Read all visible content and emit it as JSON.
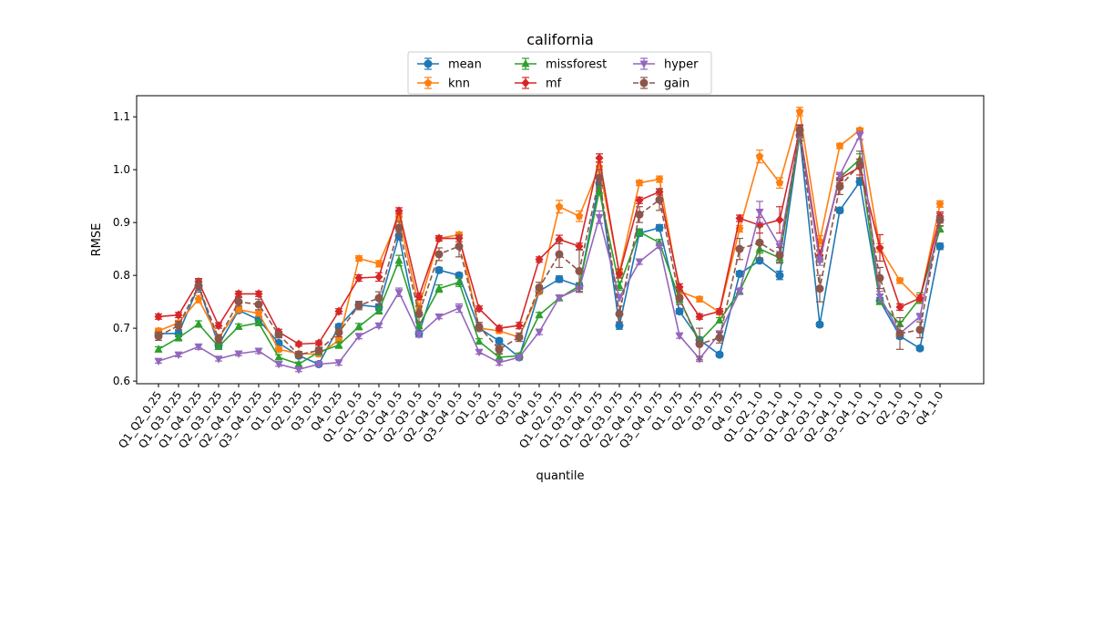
{
  "chart_data": {
    "type": "line",
    "title": "california",
    "xlabel": "quantile",
    "ylabel": "RMSE",
    "ylim": [
      0.595,
      1.14
    ],
    "yticks": [
      0.6,
      0.7,
      0.8,
      0.9,
      1.0,
      1.1
    ],
    "legend_position": "top-center",
    "legend_columns": 3,
    "grid": false,
    "categories": [
      "Q1_Q2_0.25",
      "Q1_Q3_0.25",
      "Q1_Q4_0.25",
      "Q2_Q3_0.25",
      "Q2_Q4_0.25",
      "Q3_Q4_0.25",
      "Q1_0.25",
      "Q2_0.25",
      "Q3_0.25",
      "Q4_0.25",
      "Q1_Q2_0.5",
      "Q1_Q3_0.5",
      "Q1_Q4_0.5",
      "Q2_Q3_0.5",
      "Q2_Q4_0.5",
      "Q3_Q4_0.5",
      "Q1_0.5",
      "Q2_0.5",
      "Q3_0.5",
      "Q4_0.5",
      "Q1_Q2_0.75",
      "Q1_Q3_0.75",
      "Q1_Q4_0.75",
      "Q2_Q3_0.75",
      "Q2_Q4_0.75",
      "Q3_Q4_0.75",
      "Q1_0.75",
      "Q2_0.75",
      "Q3_0.75",
      "Q4_0.75",
      "Q1_Q2_1.0",
      "Q1_Q3_1.0",
      "Q1_Q4_1.0",
      "Q2_Q3_1.0",
      "Q2_Q4_1.0",
      "Q3_Q4_1.0",
      "Q1_1.0",
      "Q2_1.0",
      "Q3_1.0",
      "Q4_1.0"
    ],
    "x_points": 40,
    "tick_label_interval": 1,
    "series": [
      {
        "name": "mean",
        "color": "#1f77b4",
        "marker": "circle",
        "dashed": false,
        "values": [
          0.69,
          0.69,
          0.78,
          0.668,
          0.734,
          0.716,
          0.672,
          0.648,
          0.632,
          0.703,
          0.744,
          0.74,
          0.875,
          0.69,
          0.81,
          0.8,
          0.7,
          0.676,
          0.645,
          0.77,
          0.793,
          0.78,
          0.975,
          0.705,
          0.88,
          0.89,
          0.732,
          0.678,
          0.65,
          0.803,
          0.828,
          0.8,
          1.065,
          0.707,
          0.923,
          0.977,
          0.752,
          0.685,
          0.662,
          0.855
        ],
        "errors": [
          0.005,
          0.006,
          0.008,
          0.005,
          0.005,
          0.006,
          0.004,
          0.004,
          0.003,
          0.005,
          0.006,
          0.006,
          0.008,
          0.005,
          0.005,
          0.005,
          0.005,
          0.005,
          0.004,
          0.005,
          0.006,
          0.006,
          0.01,
          0.007,
          0.006,
          0.006,
          0.005,
          0.005,
          0.004,
          0.005,
          0.005,
          0.008,
          0.01,
          0.004,
          0.005,
          0.006,
          0.006,
          0.005,
          0.004,
          0.006
        ]
      },
      {
        "name": "knn",
        "color": "#ff7f0e",
        "marker": "pentagon",
        "dashed": false,
        "values": [
          0.695,
          0.71,
          0.755,
          0.682,
          0.735,
          0.728,
          0.66,
          0.652,
          0.651,
          0.677,
          0.832,
          0.822,
          0.91,
          0.74,
          0.87,
          0.877,
          0.7,
          0.695,
          0.683,
          0.77,
          0.93,
          0.912,
          1.005,
          0.805,
          0.975,
          0.982,
          0.77,
          0.755,
          0.73,
          0.888,
          1.025,
          0.975,
          1.11,
          0.865,
          1.045,
          1.075,
          0.852,
          0.79,
          0.752,
          0.935
        ],
        "errors": [
          0.005,
          0.005,
          0.007,
          0.005,
          0.005,
          0.005,
          0.004,
          0.004,
          0.004,
          0.005,
          0.005,
          0.006,
          0.008,
          0.006,
          0.005,
          0.005,
          0.005,
          0.004,
          0.004,
          0.005,
          0.012,
          0.01,
          0.01,
          0.008,
          0.005,
          0.006,
          0.006,
          0.005,
          0.004,
          0.006,
          0.012,
          0.01,
          0.008,
          0.01,
          0.005,
          0.004,
          0.008,
          0.005,
          0.005,
          0.006
        ]
      },
      {
        "name": "missforest",
        "color": "#2ca02c",
        "marker": "triangle-up",
        "dashed": false,
        "values": [
          0.66,
          0.682,
          0.708,
          0.665,
          0.703,
          0.71,
          0.645,
          0.632,
          0.655,
          0.668,
          0.703,
          0.733,
          0.828,
          0.705,
          0.775,
          0.787,
          0.675,
          0.645,
          0.648,
          0.725,
          0.757,
          0.78,
          0.96,
          0.78,
          0.882,
          0.862,
          0.755,
          0.675,
          0.715,
          0.77,
          0.85,
          0.833,
          1.065,
          0.835,
          0.985,
          1.02,
          0.75,
          0.708,
          0.757,
          0.888
        ],
        "errors": [
          0.005,
          0.006,
          0.006,
          0.005,
          0.005,
          0.005,
          0.005,
          0.004,
          0.005,
          0.006,
          0.006,
          0.006,
          0.01,
          0.006,
          0.007,
          0.008,
          0.005,
          0.006,
          0.005,
          0.005,
          0.005,
          0.006,
          0.008,
          0.008,
          0.006,
          0.006,
          0.006,
          0.005,
          0.005,
          0.006,
          0.008,
          0.008,
          0.01,
          0.01,
          0.006,
          0.01,
          0.005,
          0.005,
          0.01,
          0.006
        ]
      },
      {
        "name": "mf",
        "color": "#d62728",
        "marker": "diamond",
        "dashed": false,
        "values": [
          0.722,
          0.725,
          0.788,
          0.705,
          0.765,
          0.765,
          0.693,
          0.67,
          0.672,
          0.732,
          0.795,
          0.797,
          0.922,
          0.76,
          0.87,
          0.87,
          0.737,
          0.7,
          0.705,
          0.83,
          0.868,
          0.855,
          1.022,
          0.803,
          0.942,
          0.958,
          0.778,
          0.722,
          0.732,
          0.908,
          0.895,
          0.905,
          1.075,
          0.838,
          0.983,
          1.005,
          0.852,
          0.74,
          0.757,
          0.912
        ],
        "errors": [
          0.005,
          0.005,
          0.006,
          0.005,
          0.005,
          0.005,
          0.005,
          0.004,
          0.004,
          0.005,
          0.006,
          0.008,
          0.006,
          0.006,
          0.005,
          0.006,
          0.005,
          0.005,
          0.006,
          0.005,
          0.008,
          0.006,
          0.008,
          0.008,
          0.006,
          0.006,
          0.006,
          0.005,
          0.005,
          0.006,
          0.015,
          0.025,
          0.008,
          0.01,
          0.008,
          0.015,
          0.025,
          0.006,
          0.006,
          0.008
        ]
      },
      {
        "name": "hyper",
        "color": "#9467bd",
        "marker": "triangle-down",
        "dashed": false,
        "values": [
          0.638,
          0.65,
          0.665,
          0.642,
          0.652,
          0.657,
          0.632,
          0.622,
          0.632,
          0.635,
          0.685,
          0.705,
          0.768,
          0.688,
          0.722,
          0.738,
          0.655,
          0.635,
          0.645,
          0.693,
          0.758,
          0.775,
          0.91,
          0.758,
          0.826,
          0.856,
          0.686,
          0.642,
          0.69,
          0.77,
          0.92,
          0.855,
          1.07,
          0.827,
          0.99,
          1.065,
          0.76,
          0.69,
          0.722,
          0.905
        ],
        "errors": [
          0.004,
          0.004,
          0.005,
          0.004,
          0.004,
          0.005,
          0.004,
          0.004,
          0.004,
          0.005,
          0.005,
          0.004,
          0.008,
          0.005,
          0.004,
          0.008,
          0.004,
          0.005,
          0.005,
          0.005,
          0.005,
          0.005,
          0.012,
          0.006,
          0.005,
          0.005,
          0.005,
          0.005,
          0.005,
          0.006,
          0.02,
          0.01,
          0.01,
          0.008,
          0.005,
          0.008,
          0.01,
          0.005,
          0.006,
          0.006
        ]
      },
      {
        "name": "gain",
        "color": "#8c564b",
        "marker": "circle",
        "dashed": true,
        "values": [
          0.685,
          0.705,
          0.78,
          0.68,
          0.75,
          0.745,
          0.688,
          0.65,
          0.658,
          0.692,
          0.743,
          0.757,
          0.89,
          0.727,
          0.84,
          0.855,
          0.703,
          0.66,
          0.683,
          0.777,
          0.84,
          0.808,
          0.985,
          0.727,
          0.915,
          0.943,
          0.757,
          0.67,
          0.682,
          0.85,
          0.862,
          0.838,
          1.075,
          0.775,
          0.968,
          1.01,
          0.795,
          0.69,
          0.697,
          0.905
        ],
        "errors": [
          0.008,
          0.008,
          0.012,
          0.008,
          0.008,
          0.01,
          0.006,
          0.006,
          0.006,
          0.008,
          0.008,
          0.012,
          0.012,
          0.015,
          0.012,
          0.02,
          0.008,
          0.008,
          0.008,
          0.01,
          0.025,
          0.04,
          0.015,
          0.015,
          0.015,
          0.02,
          0.012,
          0.03,
          0.01,
          0.02,
          0.03,
          0.015,
          0.01,
          0.025,
          0.015,
          0.025,
          0.02,
          0.03,
          0.015,
          0.012
        ]
      }
    ]
  }
}
